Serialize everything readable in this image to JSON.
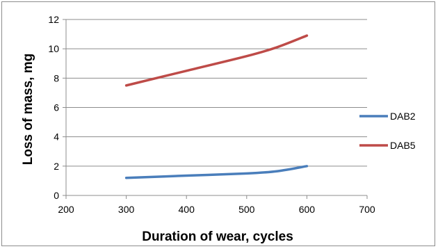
{
  "chart_data": {
    "type": "line",
    "xlabel": "Duration of wear, cycles",
    "ylabel": "Loss of mass, mg",
    "xlim": [
      200,
      700
    ],
    "ylim": [
      0,
      12
    ],
    "xticks": [
      "200",
      "300",
      "400",
      "500",
      "600",
      "700"
    ],
    "yticks": [
      "0",
      "2",
      "4",
      "6",
      "8",
      "10",
      "12"
    ],
    "grid": "horizontal",
    "legend_position": "right",
    "series": [
      {
        "name": "DAB2",
        "color": "#4a7ebb",
        "x": [
          300,
          400,
          500,
          550,
          600
        ],
        "y": [
          1.2,
          1.35,
          1.5,
          1.65,
          2.0
        ]
      },
      {
        "name": "DAB5",
        "color": "#be4b48",
        "x": [
          300,
          400,
          500,
          550,
          600
        ],
        "y": [
          7.5,
          8.5,
          9.5,
          10.1,
          10.9
        ]
      }
    ]
  }
}
